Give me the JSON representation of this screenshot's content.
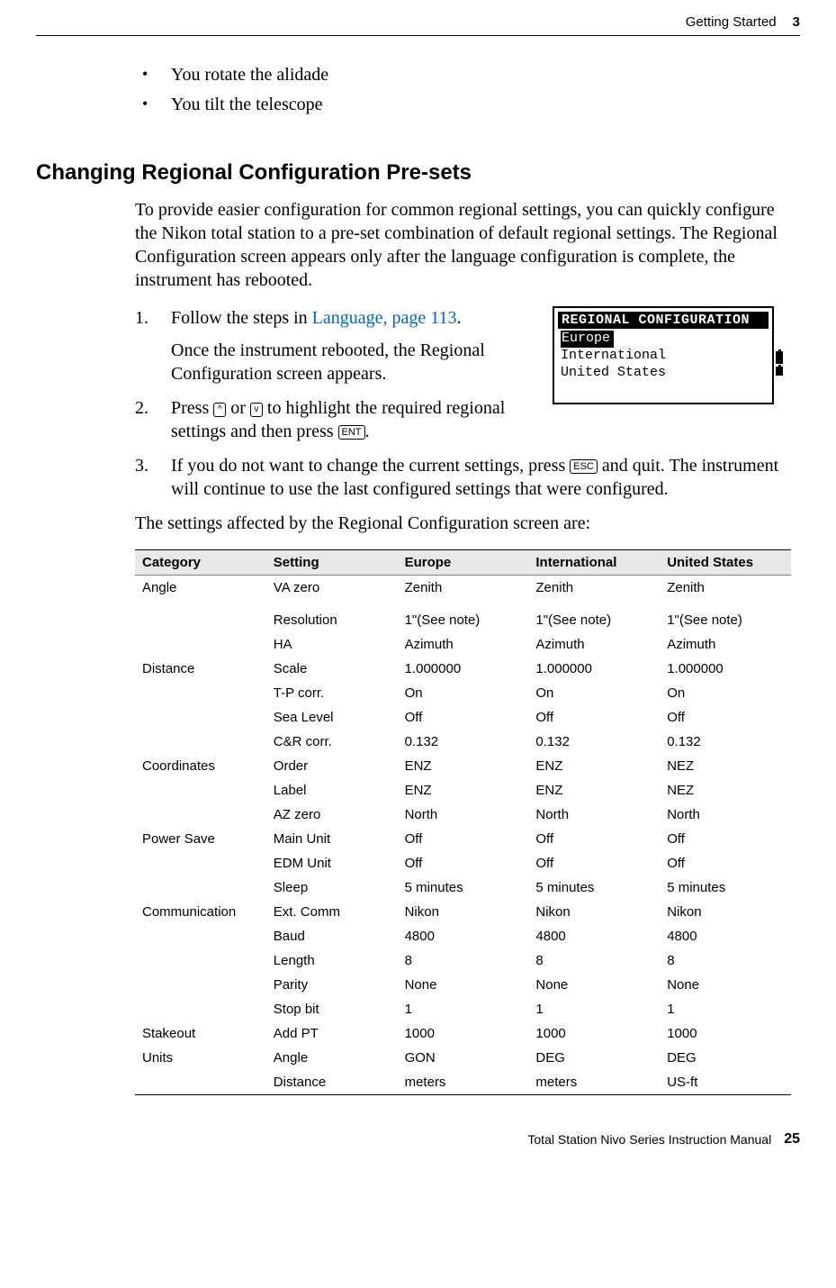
{
  "header": {
    "chapter_title": "Getting Started",
    "chapter_number": "3"
  },
  "intro_bullets": [
    "You rotate the alidade",
    "You tilt the telescope"
  ],
  "section_heading": "Changing Regional Configuration Pre-sets",
  "intro_para": "To provide easier configuration for common regional settings, you can quickly configure the Nikon total station to a pre-set combination of default regional settings. The Regional Configuration screen appears only after the language configuration is complete, the instrument has rebooted.",
  "steps": {
    "s1_a": "Follow the steps in ",
    "s1_link": "Language, page 113",
    "s1_b": ".",
    "s1_sub": "Once the instrument rebooted, the Regional Configuration screen appears.",
    "s2_a": "Press ",
    "s2_key1": "^",
    "s2_mid1": " or ",
    "s2_key2": "v",
    "s2_mid2": " to highlight the required regional settings and then press ",
    "s2_key3": "ENT",
    "s2_b": ".",
    "s3_a": "If you do not want to change the current settings, press ",
    "s3_key": "ESC",
    "s3_b": " and quit. The instrument will continue to use the last configured settings that were configured."
  },
  "lcd": {
    "title": "REGIONAL CONFIGURATION",
    "opt1": "Europe",
    "opt2": "International",
    "opt3": "United States"
  },
  "table_intro": "The settings affected by the Regional Configuration screen are:",
  "table": {
    "headers": [
      "Category",
      "Setting",
      "Europe",
      "International",
      "United States"
    ],
    "rows": [
      {
        "cat": "Angle",
        "setting": "VA zero",
        "eu": "Zenith",
        "intl": "Zenith",
        "us": "Zenith",
        "spacer_after": true
      },
      {
        "cat": "",
        "setting": "Resolution",
        "eu": "1\"(See note)",
        "intl": "1\"(See note)",
        "us": "1\"(See note)"
      },
      {
        "cat": "",
        "setting": "HA",
        "eu": "Azimuth",
        "intl": "Azimuth",
        "us": "Azimuth"
      },
      {
        "cat": "Distance",
        "setting": "Scale",
        "eu": "1.000000",
        "intl": "1.000000",
        "us": "1.000000"
      },
      {
        "cat": "",
        "setting": "T-P corr.",
        "eu": "On",
        "intl": "On",
        "us": "On"
      },
      {
        "cat": "",
        "setting": "Sea Level",
        "eu": "Off",
        "intl": "Off",
        "us": "Off"
      },
      {
        "cat": "",
        "setting": "C&R corr.",
        "eu": "0.132",
        "intl": "0.132",
        "us": "0.132"
      },
      {
        "cat": "Coordinates",
        "setting": "Order",
        "eu": "ENZ",
        "intl": "ENZ",
        "us": "NEZ"
      },
      {
        "cat": "",
        "setting": "Label",
        "eu": "ENZ",
        "intl": "ENZ",
        "us": "NEZ"
      },
      {
        "cat": "",
        "setting": "AZ zero",
        "eu": "North",
        "intl": "North",
        "us": "North"
      },
      {
        "cat": "Power Save",
        "setting": "Main Unit",
        "eu": "Off",
        "intl": "Off",
        "us": "Off"
      },
      {
        "cat": "",
        "setting": "EDM Unit",
        "eu": "Off",
        "intl": "Off",
        "us": "Off"
      },
      {
        "cat": "",
        "setting": "Sleep",
        "eu": "5 minutes",
        "intl": "5 minutes",
        "us": "5 minutes"
      },
      {
        "cat": "Communication",
        "setting": "Ext. Comm",
        "eu": "Nikon",
        "intl": "Nikon",
        "us": "Nikon"
      },
      {
        "cat": "",
        "setting": "Baud",
        "eu": "4800",
        "intl": "4800",
        "us": "4800"
      },
      {
        "cat": "",
        "setting": "Length",
        "eu": "8",
        "intl": "8",
        "us": "8"
      },
      {
        "cat": "",
        "setting": "Parity",
        "eu": "None",
        "intl": "None",
        "us": "None"
      },
      {
        "cat": "",
        "setting": "Stop bit",
        "eu": "1",
        "intl": "1",
        "us": "1"
      },
      {
        "cat": "Stakeout",
        "setting": "Add PT",
        "eu": "1000",
        "intl": "1000",
        "us": "1000"
      },
      {
        "cat": "Units",
        "setting": "Angle",
        "eu": "GON",
        "intl": "DEG",
        "us": "DEG"
      },
      {
        "cat": "",
        "setting": "Distance",
        "eu": "meters",
        "intl": "meters",
        "us": "US-ft"
      }
    ]
  },
  "footer": {
    "manual_title": "Total Station Nivo Series Instruction Manual",
    "page_number": "25"
  }
}
